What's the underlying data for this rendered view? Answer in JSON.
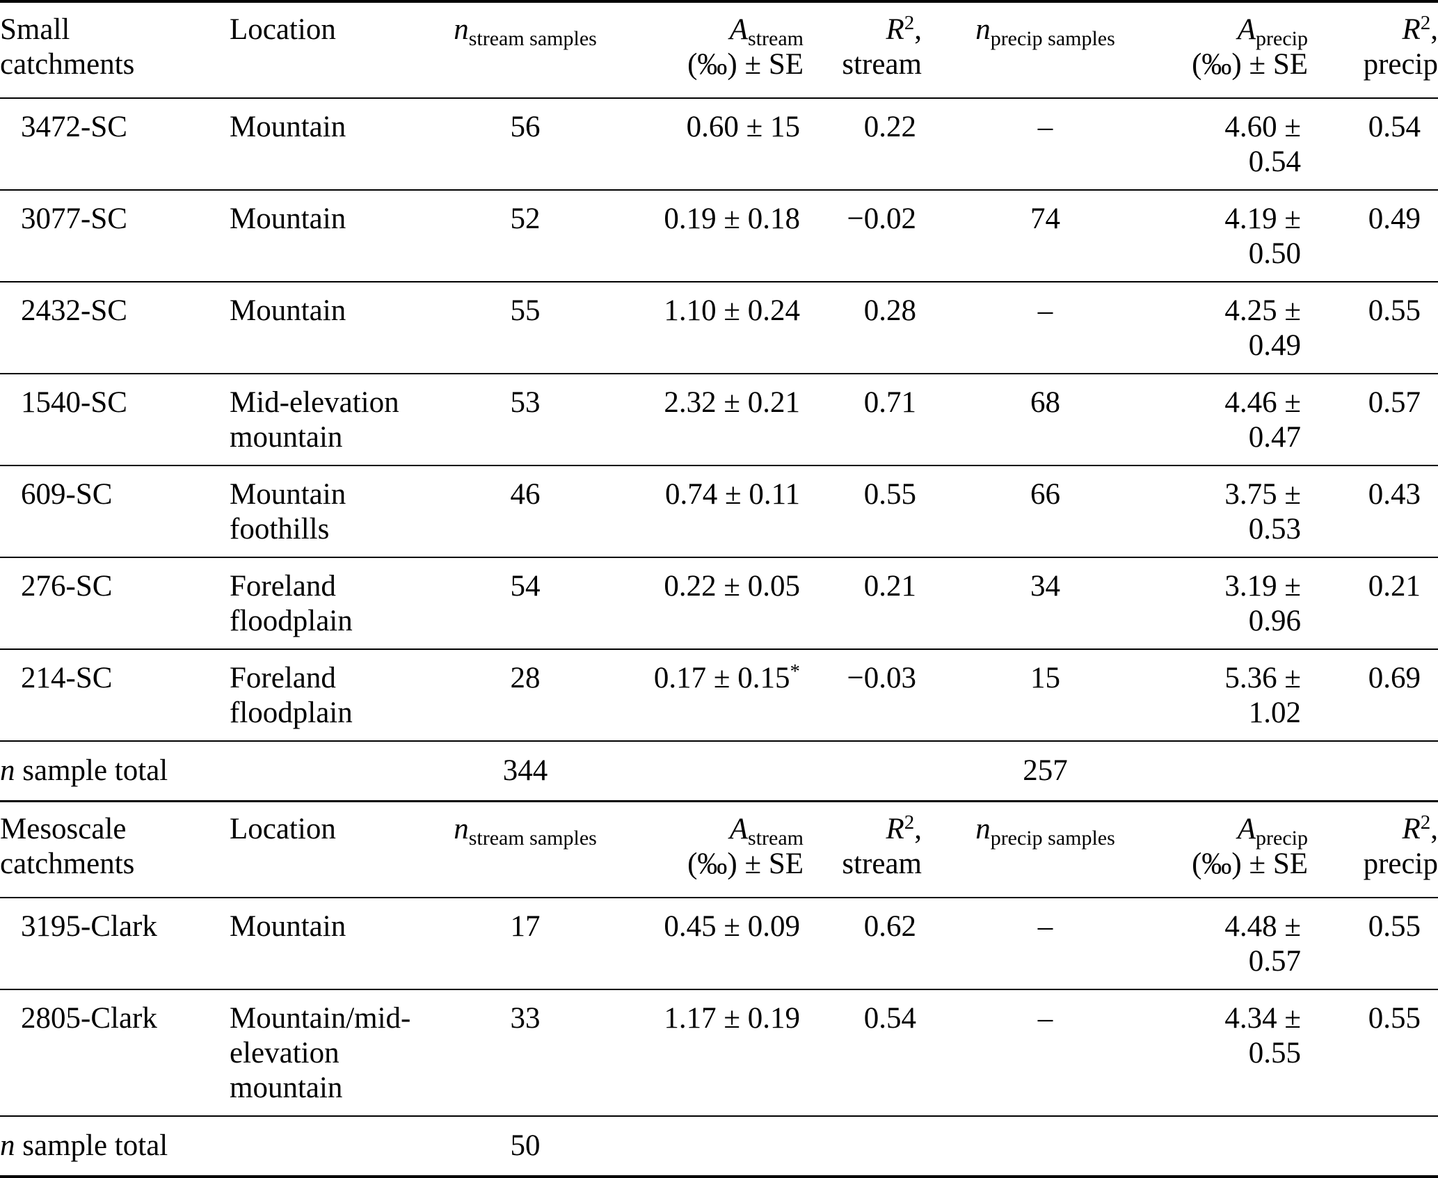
{
  "style": {
    "background": "#ffffff",
    "text_color": "#000000",
    "rule_color": "#000000"
  },
  "table": {
    "sections": [
      {
        "title": {
          "line1": "Small",
          "line2": "catchments"
        },
        "header": {
          "location": "Location",
          "n_stream": {
            "symbol": "n",
            "sub": "stream samples"
          },
          "a_stream": {
            "symbol": "A",
            "sub": "stream",
            "line2": "(‰) ± SE"
          },
          "r2_stream": {
            "symbol": "R",
            "sup": "2",
            "comma": ",",
            "line2": "stream"
          },
          "n_precip": {
            "symbol": "n",
            "sub": "precip samples"
          },
          "a_precip": {
            "symbol": "A",
            "sub": "precip",
            "line2": "(‰) ± SE"
          },
          "r2_precip": {
            "symbol": "R",
            "sup": "2",
            "comma": ",",
            "line2": "precip"
          }
        },
        "rows": [
          {
            "id": "3472-SC",
            "location": "Mountain",
            "n_stream": "56",
            "a_stream": "0.60 ± 15",
            "a_flag": "",
            "r2_stream": "0.22",
            "n_precip": "–",
            "a_precip": "4.60 ± 0.54",
            "r2_precip": "0.54"
          },
          {
            "id": "3077-SC",
            "location": "Mountain",
            "n_stream": "52",
            "a_stream": "0.19 ± 0.18",
            "a_flag": "",
            "r2_stream": "−0.02",
            "n_precip": "74",
            "a_precip": "4.19 ± 0.50",
            "r2_precip": "0.49"
          },
          {
            "id": "2432-SC",
            "location": "Mountain",
            "n_stream": "55",
            "a_stream": "1.10 ± 0.24",
            "a_flag": "",
            "r2_stream": "0.28",
            "n_precip": "–",
            "a_precip": "4.25 ± 0.49",
            "r2_precip": "0.55"
          },
          {
            "id": "1540-SC",
            "location": "Mid-elevation mountain",
            "n_stream": "53",
            "a_stream": "2.32 ± 0.21",
            "a_flag": "",
            "r2_stream": "0.71",
            "n_precip": "68",
            "a_precip": "4.46 ± 0.47",
            "r2_precip": "0.57"
          },
          {
            "id": "609-SC",
            "location": "Mountain foothills",
            "n_stream": "46",
            "a_stream": "0.74 ± 0.11",
            "a_flag": "",
            "r2_stream": "0.55",
            "n_precip": "66",
            "a_precip": "3.75 ± 0.53",
            "r2_precip": "0.43"
          },
          {
            "id": "276-SC",
            "location": "Foreland floodplain",
            "n_stream": "54",
            "a_stream": "0.22 ± 0.05",
            "a_flag": "",
            "r2_stream": "0.21",
            "n_precip": "34",
            "a_precip": "3.19 ± 0.96",
            "r2_precip": "0.21"
          },
          {
            "id": "214-SC",
            "location": "Foreland floodplain",
            "n_stream": "28",
            "a_stream": "0.17 ± 0.15",
            "a_flag": "*",
            "r2_stream": "−0.03",
            "n_precip": "15",
            "a_precip": "5.36 ± 1.02",
            "r2_precip": "0.69"
          }
        ],
        "total": {
          "label_symbol": "n",
          "label_text": " sample total",
          "n_stream": "344",
          "n_precip": "257"
        }
      },
      {
        "title": {
          "line1": "Mesoscale",
          "line2": "catchments"
        },
        "header": {
          "location": "Location",
          "n_stream": {
            "symbol": "n",
            "sub": "stream samples"
          },
          "a_stream": {
            "symbol": "A",
            "sub": "stream",
            "line2": "(‰) ± SE"
          },
          "r2_stream": {
            "symbol": "R",
            "sup": "2",
            "comma": ",",
            "line2": "stream"
          },
          "n_precip": {
            "symbol": "n",
            "sub": "precip samples"
          },
          "a_precip": {
            "symbol": "A",
            "sub": "precip",
            "line2": "(‰) ± SE"
          },
          "r2_precip": {
            "symbol": "R",
            "sup": "2",
            "comma": ",",
            "line2": "precip"
          }
        },
        "rows": [
          {
            "id": "3195-Clark",
            "location": "Mountain",
            "n_stream": "17",
            "a_stream": "0.45 ± 0.09",
            "a_flag": "",
            "r2_stream": "0.62",
            "n_precip": "–",
            "a_precip": "4.48 ± 0.57",
            "r2_precip": "0.55"
          },
          {
            "id": "2805-Clark",
            "location": "Mountain/mid-elevation mountain",
            "n_stream": "33",
            "a_stream": "1.17 ± 0.19",
            "a_flag": "",
            "r2_stream": "0.54",
            "n_precip": "–",
            "a_precip": "4.34 ± 0.55",
            "r2_precip": "0.55"
          }
        ],
        "total": {
          "label_symbol": "n",
          "label_text": " sample total",
          "n_stream": "50",
          "n_precip": ""
        }
      }
    ]
  }
}
